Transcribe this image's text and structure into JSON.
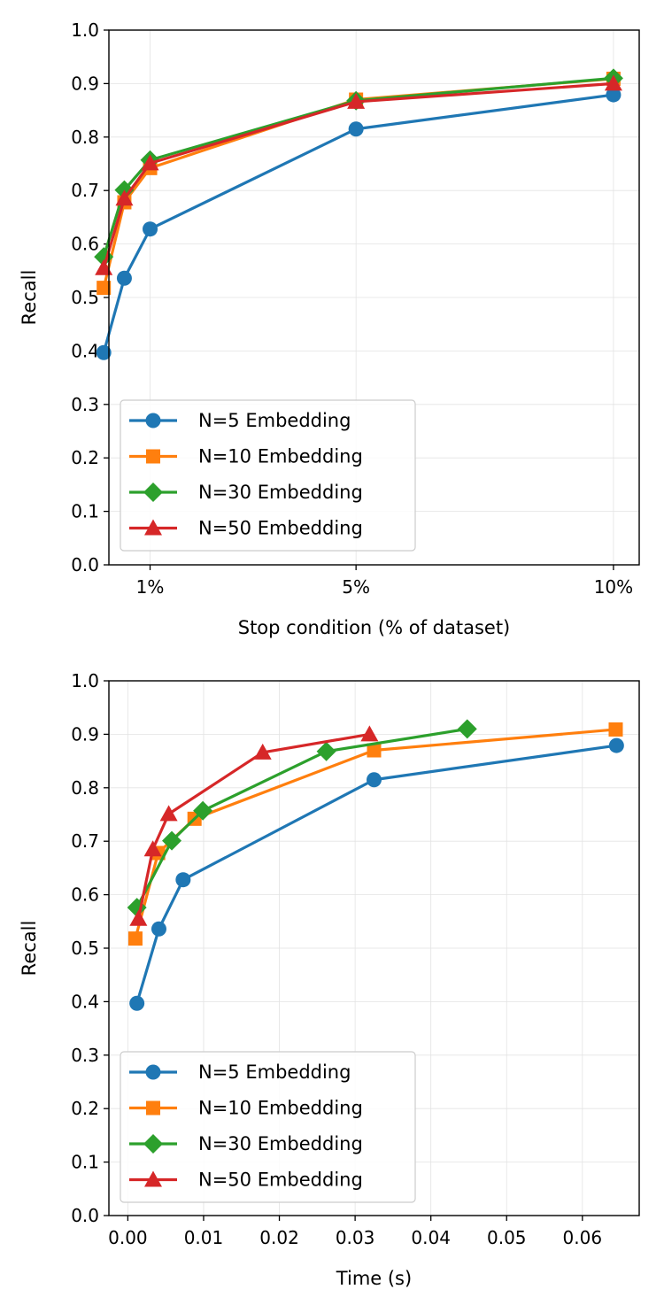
{
  "chart_data": [
    {
      "type": "line",
      "xlabel": "Stop condition (% of dataset)",
      "ylabel": "Recall",
      "xlim": [
        0.2,
        10.5
      ],
      "ylim": [
        0,
        1
      ],
      "xticks": [
        {
          "value": 1,
          "label": "1%"
        },
        {
          "value": 5,
          "label": "5%"
        },
        {
          "value": 10,
          "label": "10%"
        }
      ],
      "yticks": [
        {
          "value": 0.0,
          "label": "0.0"
        },
        {
          "value": 0.1,
          "label": "0.1"
        },
        {
          "value": 0.2,
          "label": "0.2"
        },
        {
          "value": 0.3,
          "label": "0.3"
        },
        {
          "value": 0.4,
          "label": "0.4"
        },
        {
          "value": 0.5,
          "label": "0.5"
        },
        {
          "value": 0.6,
          "label": "0.6"
        },
        {
          "value": 0.7,
          "label": "0.7"
        },
        {
          "value": 0.8,
          "label": "0.8"
        },
        {
          "value": 0.9,
          "label": "0.9"
        },
        {
          "value": 1.0,
          "label": "1.0"
        }
      ],
      "grid": true,
      "legend_position": "lower-left",
      "series": [
        {
          "name": "N=5 Embedding",
          "color": "#1f77b4",
          "marker": "circle",
          "x": [
            0.1,
            0.5,
            1,
            5,
            10
          ],
          "y": [
            0.397,
            0.536,
            0.628,
            0.815,
            0.879
          ]
        },
        {
          "name": "N=10 Embedding",
          "color": "#ff7f0e",
          "marker": "square",
          "x": [
            0.1,
            0.5,
            1,
            5,
            10
          ],
          "y": [
            0.518,
            0.678,
            0.742,
            0.87,
            0.909
          ]
        },
        {
          "name": "N=30 Embedding",
          "color": "#2ca02c",
          "marker": "diamond",
          "x": [
            0.1,
            0.5,
            1,
            5,
            10
          ],
          "y": [
            0.576,
            0.701,
            0.757,
            0.868,
            0.91
          ]
        },
        {
          "name": "N=50 Embedding",
          "color": "#d62728",
          "marker": "triangle",
          "x": [
            0.1,
            0.5,
            1,
            5,
            10
          ],
          "y": [
            0.555,
            0.685,
            0.751,
            0.866,
            0.9
          ]
        }
      ]
    },
    {
      "type": "line",
      "xlabel": "Time (s)",
      "ylabel": "Recall",
      "xlim": [
        -0.0025,
        0.0675
      ],
      "ylim": [
        0,
        1
      ],
      "xticks": [
        {
          "value": 0.0,
          "label": "0.00"
        },
        {
          "value": 0.01,
          "label": "0.01"
        },
        {
          "value": 0.02,
          "label": "0.02"
        },
        {
          "value": 0.03,
          "label": "0.03"
        },
        {
          "value": 0.04,
          "label": "0.04"
        },
        {
          "value": 0.05,
          "label": "0.05"
        },
        {
          "value": 0.06,
          "label": "0.06"
        }
      ],
      "yticks": [
        {
          "value": 0.0,
          "label": "0.0"
        },
        {
          "value": 0.1,
          "label": "0.1"
        },
        {
          "value": 0.2,
          "label": "0.2"
        },
        {
          "value": 0.3,
          "label": "0.3"
        },
        {
          "value": 0.4,
          "label": "0.4"
        },
        {
          "value": 0.5,
          "label": "0.5"
        },
        {
          "value": 0.6,
          "label": "0.6"
        },
        {
          "value": 0.7,
          "label": "0.7"
        },
        {
          "value": 0.8,
          "label": "0.8"
        },
        {
          "value": 0.9,
          "label": "0.9"
        },
        {
          "value": 1.0,
          "label": "1.0"
        }
      ],
      "grid": true,
      "legend_position": "lower-left",
      "series": [
        {
          "name": "N=5 Embedding",
          "color": "#1f77b4",
          "marker": "circle",
          "x": [
            0.0012,
            0.0041,
            0.0073,
            0.0325,
            0.0645
          ],
          "y": [
            0.397,
            0.536,
            0.628,
            0.815,
            0.879
          ]
        },
        {
          "name": "N=10 Embedding",
          "color": "#ff7f0e",
          "marker": "square",
          "x": [
            0.001,
            0.004,
            0.0088,
            0.0325,
            0.0644
          ],
          "y": [
            0.518,
            0.678,
            0.742,
            0.87,
            0.909
          ]
        },
        {
          "name": "N=30 Embedding",
          "color": "#2ca02c",
          "marker": "diamond",
          "x": [
            0.0012,
            0.0058,
            0.0099,
            0.0262,
            0.0448
          ],
          "y": [
            0.576,
            0.701,
            0.757,
            0.868,
            0.91
          ]
        },
        {
          "name": "N=50 Embedding",
          "color": "#d62728",
          "marker": "triangle",
          "x": [
            0.0014,
            0.0033,
            0.0054,
            0.0178,
            0.0319
          ],
          "y": [
            0.555,
            0.685,
            0.751,
            0.866,
            0.9
          ]
        }
      ]
    }
  ]
}
